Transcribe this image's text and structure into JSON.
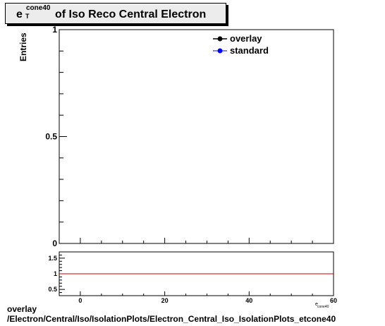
{
  "title": {
    "symbol": "e",
    "superscript": "cone40",
    "subscript": "T",
    "rest": "of Iso Reco Central  Electron"
  },
  "footer": {
    "line1": "overlay",
    "line2": "/Electron/Central/Iso/IsolationPlots/Electron_Central_Iso_IsolationPlots_etcone40"
  },
  "chart_data": [
    {
      "type": "line",
      "ylabel": "Entries",
      "ylim": [
        0,
        1
      ],
      "xlim": [
        -5,
        60
      ],
      "yticks": [
        {
          "value": 0,
          "label": "0"
        },
        {
          "value": 0.5,
          "label": "0.5"
        },
        {
          "value": 1,
          "label": "1"
        }
      ],
      "legend": {
        "placement": "top-right",
        "entries": [
          {
            "name": "overlay",
            "color": "#000000"
          },
          {
            "name": "standard",
            "color": "#0000ff"
          }
        ]
      },
      "series": [
        {
          "name": "overlay",
          "values": []
        },
        {
          "name": "standard",
          "values": []
        }
      ]
    },
    {
      "type": "line",
      "xlim": [
        -5,
        60
      ],
      "ylim": [
        0.3,
        1.7
      ],
      "xticks": [
        0,
        20,
        40,
        60
      ],
      "yticks": [
        {
          "value": 0.5,
          "label": "0.5"
        },
        {
          "value": 1,
          "label": "1"
        },
        {
          "value": 1.5,
          "label": "1.5"
        }
      ],
      "xlabel": "e_T^cone40",
      "reference_line": {
        "value": 1,
        "color": "#cc0000"
      }
    }
  ]
}
